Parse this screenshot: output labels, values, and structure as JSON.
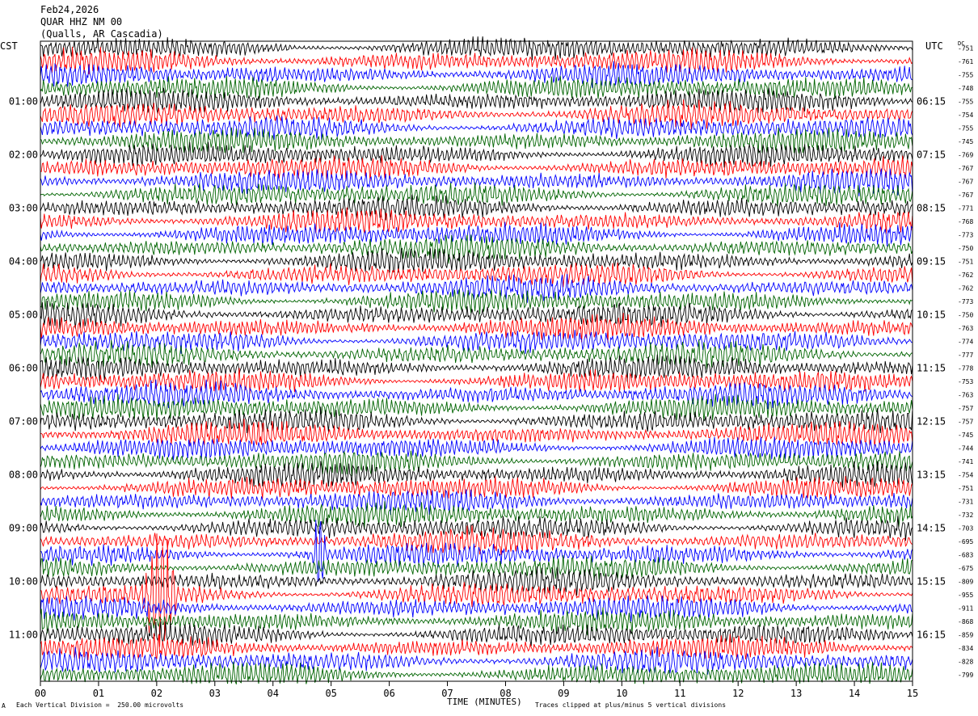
{
  "header": {
    "date": "Feb24,2026",
    "station": "QUAR HHZ NM 00",
    "location": "(Qualls, AR Cascadia)"
  },
  "left_axis_label": "CST",
  "right_axis_label": "UTC",
  "dc_label": "DC",
  "footer": {
    "scale_note": "Each Vertical Division =  250.00 microvolts",
    "xlabel": "TIME (MINUTES)",
    "clip_note": "Traces clipped at plus/minus 5 vertical divisions",
    "corner_mark": "A"
  },
  "chart_data": {
    "type": "line",
    "title": "",
    "xlabel": "TIME (MINUTES)",
    "xlim": [
      0,
      15
    ],
    "x_ticks": [
      "00",
      "01",
      "02",
      "03",
      "04",
      "05",
      "06",
      "07",
      "08",
      "09",
      "10",
      "11",
      "12",
      "13",
      "14",
      "15"
    ],
    "trace_minutes": 15,
    "trace_count": 48,
    "trace_colors": [
      "#000000",
      "#ff0000",
      "#0000ff",
      "#006400"
    ],
    "left_hour_labels": [
      "01:00",
      "02:00",
      "03:00",
      "04:00",
      "05:00",
      "06:00",
      "07:00",
      "08:00",
      "09:00",
      "10:00",
      "11:00"
    ],
    "right_hour_labels": [
      "06:15",
      "07:15",
      "08:15",
      "09:15",
      "10:15",
      "11:15",
      "12:15",
      "13:15",
      "14:15",
      "15:15",
      "16:15"
    ],
    "dc_offsets": [
      -751,
      -761,
      -755,
      -748,
      -755,
      -754,
      -755,
      -745,
      -769,
      -767,
      -767,
      -767,
      -771,
      -768,
      -773,
      -750,
      -751,
      -762,
      -762,
      -773,
      -750,
      -763,
      -774,
      -777,
      -778,
      -753,
      -763,
      -757,
      -757,
      -745,
      -744,
      -741,
      -754,
      -751,
      -731,
      -732,
      -703,
      -695,
      -683,
      -675,
      -809,
      -955,
      -911,
      -868,
      -859,
      -834,
      -828,
      -799
    ],
    "events": [
      {
        "trace": 41,
        "minute_start": 1.75,
        "minute_end": 2.35,
        "amplitude_divisions": 5,
        "color": "#ff0000"
      },
      {
        "trace": 38,
        "minute_start": 4.68,
        "minute_end": 4.92,
        "amplitude_divisions": 2.5,
        "color": "#0000ff"
      }
    ]
  }
}
